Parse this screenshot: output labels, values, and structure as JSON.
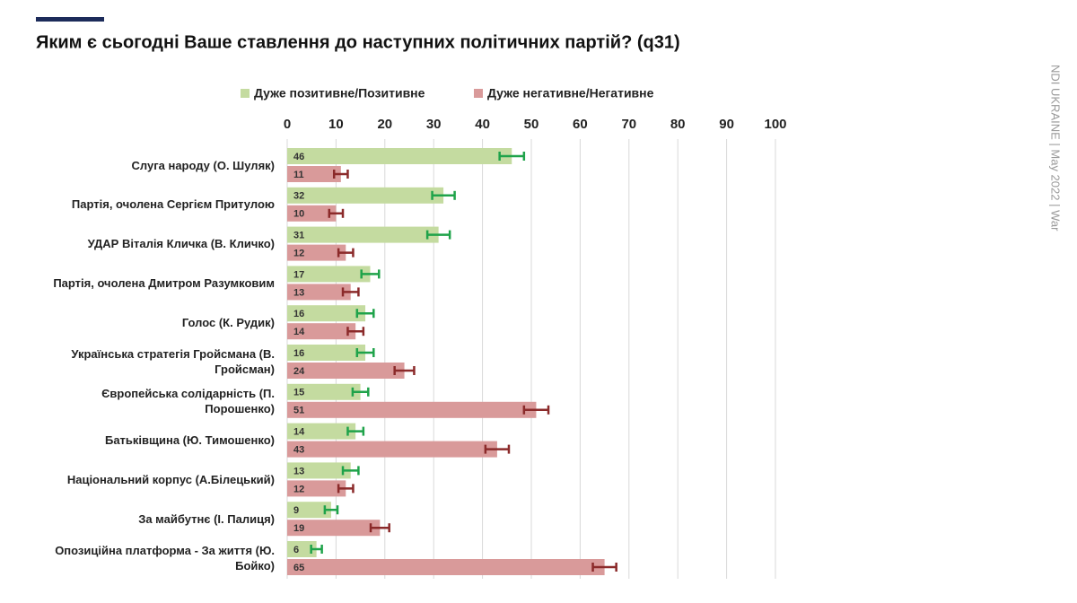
{
  "chart_data": {
    "type": "bar",
    "orientation": "horizontal",
    "title": "Яким є сьогодні Ваше ставлення до наступних політичних партій? (q31)",
    "side_note": "NDI UKRAINE | May 2022 | War",
    "categories": [
      "Слуга народу (О. Шуляк)",
      "Партія, очолена Сергієм Притулою",
      "УДАР Віталія Кличка (В. Кличко)",
      "Партія, очолена Дмитром Разумковим",
      "Голос (К. Рудик)",
      "Українська стратегія Гройсмана (В. Гройсман)",
      "Європейська солідарність (П. Порошенко)",
      "Батьківщина (Ю. Тимошенко)",
      "Національний корпус (А.Білецький)",
      "За майбутнє (І. Палиця)",
      "Опозиційна платформа - За життя (Ю. Бойко)"
    ],
    "series": [
      {
        "name": "Дуже позитивне/Позитивне",
        "color": "#c4dba0",
        "error_color": "#1fa34a",
        "values": [
          46,
          32,
          31,
          17,
          16,
          16,
          15,
          14,
          13,
          9,
          6
        ],
        "errors": [
          2.5,
          2.3,
          2.3,
          1.8,
          1.7,
          1.7,
          1.6,
          1.6,
          1.6,
          1.3,
          1.1
        ]
      },
      {
        "name": "Дуже негативне/Негативне",
        "color": "#d99a9a",
        "error_color": "#8b2a2a",
        "values": [
          11,
          10,
          12,
          13,
          14,
          24,
          51,
          43,
          12,
          19,
          65
        ],
        "errors": [
          1.4,
          1.4,
          1.5,
          1.6,
          1.6,
          2.0,
          2.5,
          2.4,
          1.5,
          1.9,
          2.4
        ]
      }
    ],
    "xlim": [
      0,
      100
    ],
    "xticks": [
      0,
      10,
      20,
      30,
      40,
      50,
      60,
      70,
      80,
      90,
      100
    ],
    "grid": true
  }
}
